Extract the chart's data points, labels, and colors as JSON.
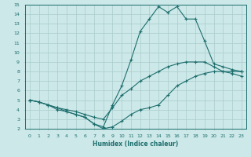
{
  "xlabel": "Humidex (Indice chaleur)",
  "bg_color": "#cce8e8",
  "grid_color": "#aacccc",
  "line_color": "#1e6e6e",
  "xlim": [
    -0.5,
    23.5
  ],
  "ylim": [
    2,
    15
  ],
  "xticks": [
    0,
    1,
    2,
    3,
    4,
    5,
    6,
    7,
    8,
    9,
    10,
    11,
    12,
    13,
    14,
    15,
    16,
    17,
    18,
    19,
    20,
    21,
    22,
    23
  ],
  "yticks": [
    2,
    3,
    4,
    5,
    6,
    7,
    8,
    9,
    10,
    11,
    12,
    13,
    14,
    15
  ],
  "line_spiky_x": [
    0,
    1,
    2,
    3,
    4,
    5,
    6,
    7,
    8,
    9,
    10,
    11,
    12,
    13,
    14,
    15,
    16,
    17,
    18,
    19,
    20,
    21,
    22,
    23
  ],
  "line_spiky_y": [
    5.0,
    4.8,
    4.5,
    4.2,
    3.8,
    3.5,
    3.2,
    2.5,
    2.2,
    4.5,
    6.5,
    9.2,
    12.2,
    13.5,
    14.8,
    14.2,
    14.8,
    13.5,
    13.5,
    11.2,
    8.8,
    8.5,
    8.2,
    8.0
  ],
  "line_mid_x": [
    0,
    1,
    2,
    3,
    4,
    5,
    6,
    7,
    8,
    9,
    10,
    11,
    12,
    13,
    14,
    15,
    16,
    17,
    18,
    19,
    20,
    21,
    22,
    23
  ],
  "line_mid_y": [
    5.0,
    4.8,
    4.5,
    4.2,
    4.0,
    3.8,
    3.5,
    3.2,
    3.0,
    4.2,
    5.5,
    6.2,
    7.0,
    7.5,
    8.0,
    8.5,
    8.8,
    9.0,
    9.0,
    9.0,
    8.5,
    8.0,
    7.8,
    7.5
  ],
  "line_low_x": [
    0,
    1,
    2,
    3,
    4,
    5,
    6,
    7,
    8,
    9,
    10,
    11,
    12,
    13,
    14,
    15,
    16,
    17,
    18,
    19,
    20,
    21,
    22,
    23
  ],
  "line_low_y": [
    5.0,
    4.8,
    4.5,
    4.0,
    3.8,
    3.5,
    3.2,
    2.5,
    2.0,
    2.2,
    2.8,
    3.5,
    4.0,
    4.2,
    4.5,
    5.5,
    6.5,
    7.0,
    7.5,
    7.8,
    8.0,
    8.0,
    8.0,
    8.0
  ]
}
